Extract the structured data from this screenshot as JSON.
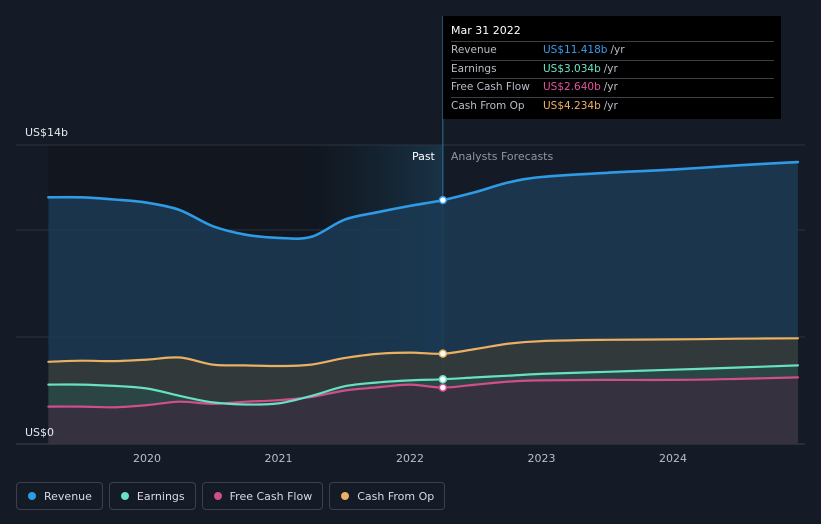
{
  "colors": {
    "revenue": "#2f9ae6",
    "earnings": "#67e1c2",
    "fcf": "#d24e8b",
    "cfo": "#ebb062",
    "background": "#151b26"
  },
  "tooltip": {
    "date": "Mar 31 2022",
    "rows": [
      {
        "label": "Revenue",
        "value": "US$11.418b",
        "unit": "/yr",
        "color": "#3b9cf0"
      },
      {
        "label": "Earnings",
        "value": "US$3.034b",
        "unit": "/yr",
        "color": "#6ee6c8"
      },
      {
        "label": "Free Cash Flow",
        "value": "US$2.640b",
        "unit": "/yr",
        "color": "#e0559a"
      },
      {
        "label": "Cash From Op",
        "value": "US$4.234b",
        "unit": "/yr",
        "color": "#efb265"
      }
    ]
  },
  "legend": [
    {
      "key": "revenue",
      "label": "Revenue"
    },
    {
      "key": "earnings",
      "label": "Earnings"
    },
    {
      "key": "fcf",
      "label": "Free Cash Flow"
    },
    {
      "key": "cfo",
      "label": "Cash From Op"
    }
  ],
  "chart_data": {
    "type": "line",
    "y_top_label": "US$14b",
    "y_bottom_label": "US$0",
    "ylim": [
      0,
      14
    ],
    "xlim": [
      2019.0,
      2025.0
    ],
    "divider_x": 2022.25,
    "past_label": "Past",
    "forecast_label": "Analysts Forecasts",
    "x_ticks": [
      {
        "x": 2020.0,
        "label": "2020"
      },
      {
        "x": 2021.0,
        "label": "2021"
      },
      {
        "x": 2022.0,
        "label": "2022"
      },
      {
        "x": 2023.0,
        "label": "2023"
      },
      {
        "x": 2024.0,
        "label": "2024"
      }
    ],
    "highlight_marker_x": 2022.25,
    "series": [
      {
        "name": "Revenue",
        "key": "revenue",
        "points": [
          [
            2019.25,
            11.55
          ],
          [
            2019.5,
            11.55
          ],
          [
            2019.75,
            11.45
          ],
          [
            2020.0,
            11.3
          ],
          [
            2020.25,
            10.95
          ],
          [
            2020.5,
            10.2
          ],
          [
            2020.75,
            9.8
          ],
          [
            2021.0,
            9.65
          ],
          [
            2021.25,
            9.7
          ],
          [
            2021.5,
            10.5
          ],
          [
            2021.75,
            10.85
          ],
          [
            2022.0,
            11.15
          ],
          [
            2022.25,
            11.42
          ],
          [
            2022.5,
            11.8
          ],
          [
            2022.75,
            12.25
          ],
          [
            2023.0,
            12.5
          ],
          [
            2023.5,
            12.7
          ],
          [
            2024.0,
            12.85
          ],
          [
            2024.5,
            13.05
          ],
          [
            2024.95,
            13.2
          ]
        ]
      },
      {
        "name": "Earnings",
        "key": "earnings",
        "points": [
          [
            2019.25,
            2.78
          ],
          [
            2019.5,
            2.78
          ],
          [
            2019.75,
            2.72
          ],
          [
            2020.0,
            2.6
          ],
          [
            2020.25,
            2.25
          ],
          [
            2020.5,
            1.95
          ],
          [
            2020.75,
            1.85
          ],
          [
            2021.0,
            1.9
          ],
          [
            2021.25,
            2.25
          ],
          [
            2021.5,
            2.7
          ],
          [
            2021.75,
            2.88
          ],
          [
            2022.0,
            2.98
          ],
          [
            2022.25,
            3.03
          ],
          [
            2022.5,
            3.12
          ],
          [
            2022.75,
            3.2
          ],
          [
            2023.0,
            3.28
          ],
          [
            2023.5,
            3.38
          ],
          [
            2024.0,
            3.48
          ],
          [
            2024.5,
            3.58
          ],
          [
            2024.95,
            3.68
          ]
        ]
      },
      {
        "name": "Free Cash Flow",
        "key": "fcf",
        "points": [
          [
            2019.25,
            1.75
          ],
          [
            2019.5,
            1.75
          ],
          [
            2019.75,
            1.72
          ],
          [
            2020.0,
            1.82
          ],
          [
            2020.25,
            1.98
          ],
          [
            2020.5,
            1.88
          ],
          [
            2020.75,
            1.98
          ],
          [
            2021.0,
            2.05
          ],
          [
            2021.25,
            2.2
          ],
          [
            2021.5,
            2.5
          ],
          [
            2021.75,
            2.65
          ],
          [
            2022.0,
            2.78
          ],
          [
            2022.25,
            2.64
          ],
          [
            2022.5,
            2.78
          ],
          [
            2022.75,
            2.92
          ],
          [
            2023.0,
            2.98
          ],
          [
            2023.5,
            3.0
          ],
          [
            2024.0,
            3.0
          ],
          [
            2024.5,
            3.05
          ],
          [
            2024.95,
            3.12
          ]
        ]
      },
      {
        "name": "Cash From Op",
        "key": "cfo",
        "points": [
          [
            2019.25,
            3.85
          ],
          [
            2019.5,
            3.9
          ],
          [
            2019.75,
            3.88
          ],
          [
            2020.0,
            3.95
          ],
          [
            2020.25,
            4.05
          ],
          [
            2020.5,
            3.72
          ],
          [
            2020.75,
            3.68
          ],
          [
            2021.0,
            3.65
          ],
          [
            2021.25,
            3.72
          ],
          [
            2021.5,
            4.02
          ],
          [
            2021.75,
            4.22
          ],
          [
            2022.0,
            4.28
          ],
          [
            2022.25,
            4.23
          ],
          [
            2022.5,
            4.45
          ],
          [
            2022.75,
            4.7
          ],
          [
            2023.0,
            4.82
          ],
          [
            2023.5,
            4.88
          ],
          [
            2024.0,
            4.9
          ],
          [
            2024.5,
            4.93
          ],
          [
            2024.95,
            4.95
          ]
        ]
      }
    ]
  }
}
